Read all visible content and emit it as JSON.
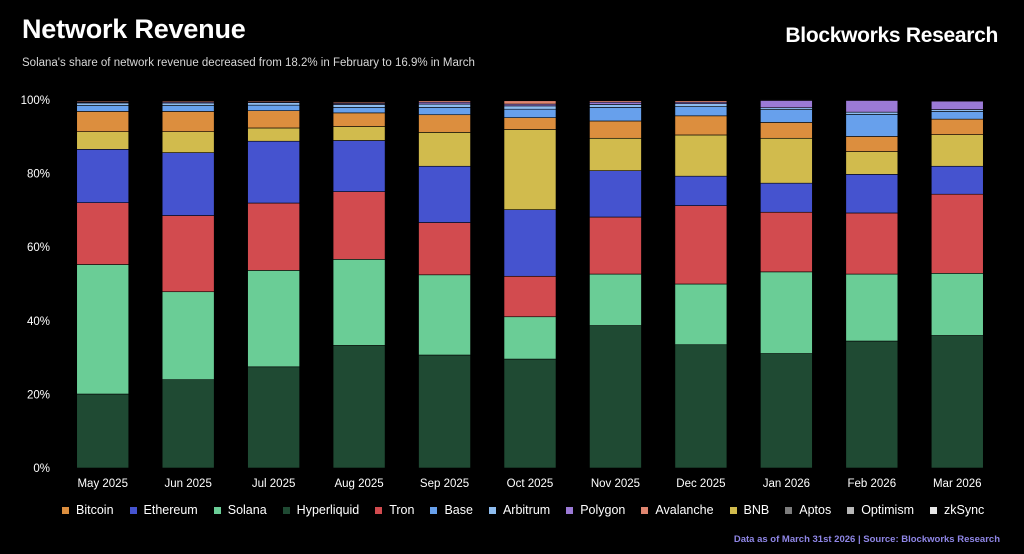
{
  "header": {
    "title": "Network Revenue",
    "subtitle": "Solana's share of network revenue decreased from 18.2% in February to 16.9% in March",
    "brand": "Blockworks Research"
  },
  "footer": {
    "note": "Data as of March 31st 2026 | Source: Blockworks Research"
  },
  "chart_data": {
    "type": "bar",
    "stacked": true,
    "title": "Network Revenue",
    "xlabel": "",
    "ylabel": "",
    "ylim": [
      0,
      100
    ],
    "yticks": [
      "0%",
      "20%",
      "40%",
      "60%",
      "80%",
      "100%"
    ],
    "grid": false,
    "legend_position": "bottom",
    "categories": [
      "May 2025",
      "Jun 2025",
      "Jul 2025",
      "Aug 2025",
      "Sep 2025",
      "Oct 2025",
      "Nov 2025",
      "Dec 2025",
      "Jan 2026",
      "Feb 2026",
      "Mar 2026"
    ],
    "stack_order_bottom_to_top": [
      "Hyperliquid",
      "Solana",
      "Tron",
      "Ethereum",
      "BNB",
      "Bitcoin",
      "Base",
      "Arbitrum",
      "Polygon",
      "Avalanche",
      "Aptos",
      "Optimism",
      "zkSync"
    ],
    "series": [
      {
        "name": "Hyperliquid",
        "color": "#1f4a33",
        "values": [
          20.1,
          24.0,
          27.5,
          33.3,
          30.7,
          29.6,
          38.7,
          33.5,
          31.1,
          34.5,
          36.0
        ]
      },
      {
        "name": "Solana",
        "color": "#6acd96",
        "values": [
          35.2,
          23.9,
          26.2,
          23.4,
          21.8,
          11.5,
          14.0,
          16.5,
          22.2,
          18.2,
          16.9
        ]
      },
      {
        "name": "Tron",
        "color": "#d24b4f",
        "values": [
          16.8,
          20.7,
          18.3,
          18.4,
          14.2,
          11.0,
          15.5,
          21.3,
          16.2,
          16.6,
          21.5
        ]
      },
      {
        "name": "Ethereum",
        "color": "#4553cf",
        "values": [
          14.5,
          17.1,
          16.8,
          13.9,
          15.3,
          18.1,
          12.6,
          8.0,
          7.9,
          10.5,
          7.6
        ]
      },
      {
        "name": "BNB",
        "color": "#d1bb4d",
        "values": [
          4.8,
          5.7,
          3.6,
          3.8,
          9.2,
          21.8,
          8.8,
          11.2,
          12.2,
          6.2,
          8.6
        ]
      },
      {
        "name": "Bitcoin",
        "color": "#dc8e3e",
        "values": [
          5.5,
          5.5,
          4.7,
          3.7,
          4.8,
          3.2,
          4.7,
          5.2,
          4.3,
          4.1,
          4.2
        ]
      },
      {
        "name": "Base",
        "color": "#67a0ec",
        "values": [
          1.6,
          1.6,
          1.5,
          1.5,
          2.0,
          2.3,
          3.7,
          2.5,
          3.5,
          6.0,
          2.1
        ]
      },
      {
        "name": "Arbitrum",
        "color": "#8ebcef",
        "values": [
          0.7,
          0.7,
          0.7,
          0.8,
          0.9,
          0.9,
          0.8,
          0.8,
          0.5,
          0.6,
          0.5
        ]
      },
      {
        "name": "Polygon",
        "color": "#9b7ad6",
        "values": [
          0.2,
          0.3,
          0.2,
          0.3,
          0.5,
          0.5,
          0.6,
          0.4,
          2.0,
          3.2,
          2.3
        ]
      },
      {
        "name": "Avalanche",
        "color": "#e08670",
        "values": [
          0.3,
          0.3,
          0.3,
          0.3,
          0.4,
          0.9,
          0.4,
          0.4,
          0.1,
          0.1,
          0.1
        ]
      },
      {
        "name": "Aptos",
        "color": "#7d7d7d",
        "values": [
          0.1,
          0.1,
          0.1,
          0.1,
          0.1,
          0.1,
          0.1,
          0.1,
          0.1,
          0.0,
          0.1
        ]
      },
      {
        "name": "Optimism",
        "color": "#b8b8b8",
        "values": [
          0.1,
          0.1,
          0.1,
          0.1,
          0.1,
          0.1,
          0.1,
          0.1,
          0.1,
          0.0,
          0.1
        ]
      },
      {
        "name": "zkSync",
        "color": "#e6e6e6",
        "values": [
          0.1,
          0.0,
          0.0,
          0.0,
          0.0,
          0.0,
          0.0,
          0.0,
          0.0,
          0.0,
          0.0
        ]
      }
    ],
    "legend_order": [
      "Bitcoin",
      "Ethereum",
      "Solana",
      "Hyperliquid",
      "Tron",
      "Base",
      "Arbitrum",
      "Polygon",
      "Avalanche",
      "BNB",
      "Aptos",
      "Optimism",
      "zkSync"
    ]
  }
}
